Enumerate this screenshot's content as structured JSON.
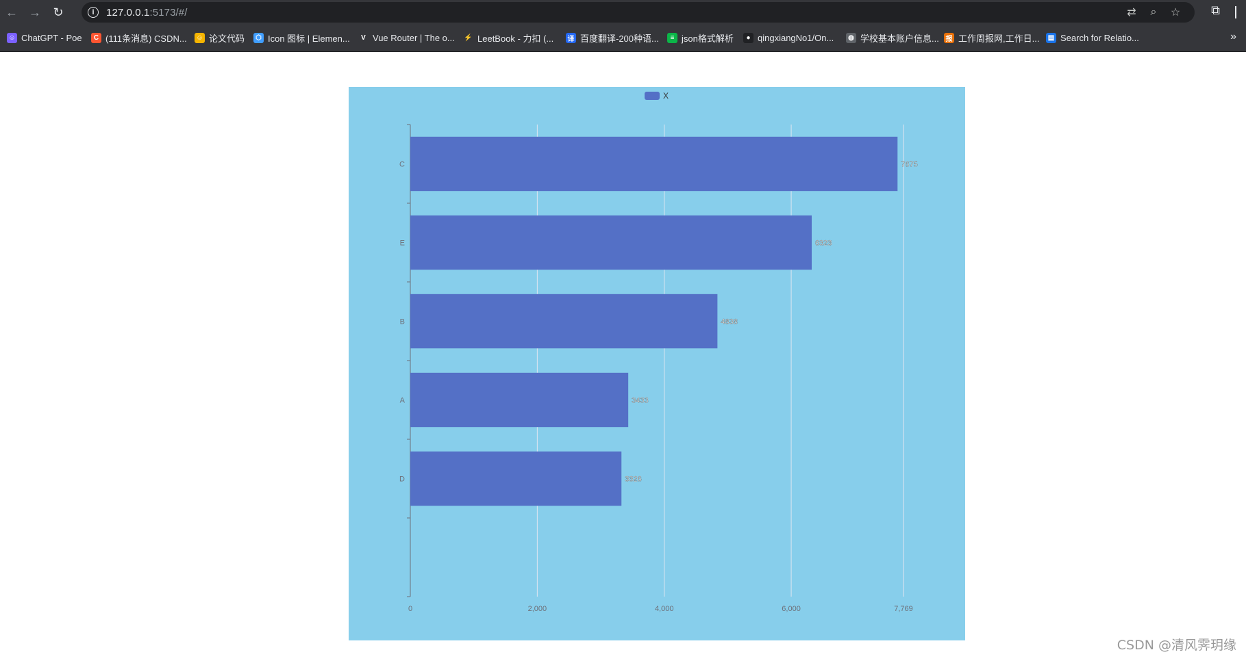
{
  "browser": {
    "url_host": "127.0.0.1",
    "url_rest": ":5173/#/",
    "site_info_glyph": "i",
    "bookmarks": [
      {
        "label": "ChatGPT - Poe",
        "icon": "poe-icon",
        "color": "#7b61ff",
        "glyph": "☺"
      },
      {
        "label": "(111条消息) CSDN...",
        "icon": "csdn-icon",
        "color": "#fc5531",
        "glyph": "C"
      },
      {
        "label": "论文代码",
        "icon": "smiley-icon",
        "color": "#f5b400",
        "glyph": "☺"
      },
      {
        "label": "Icon 图标 | Elemen...",
        "icon": "element-icon",
        "color": "#409eff",
        "glyph": "⬡"
      },
      {
        "label": "Vue Router | The o...",
        "icon": "vue-icon",
        "color": "#35363a",
        "glyph": "V"
      },
      {
        "label": "LeetBook - 力扣 (...",
        "icon": "leetcode-icon",
        "color": "#35363a",
        "glyph": "⚡"
      },
      {
        "label": "百度翻译-200种语...",
        "icon": "baidu-translate-icon",
        "color": "#2468f2",
        "glyph": "译"
      },
      {
        "label": "json格式解析",
        "icon": "json-icon",
        "color": "#0bb548",
        "glyph": "≡"
      },
      {
        "label": "qingxiangNo1/On...",
        "icon": "github-icon",
        "color": "#202124",
        "glyph": "●"
      },
      {
        "label": "学校基本账户信息...",
        "icon": "globe-icon",
        "color": "#5f6368",
        "glyph": "◍"
      },
      {
        "label": "工作周报网,工作日...",
        "icon": "report-icon",
        "color": "#e8710a",
        "glyph": "报"
      },
      {
        "label": "Search for Relatio...",
        "icon": "search-page-icon",
        "color": "#1a73e8",
        "glyph": "▤"
      }
    ]
  },
  "watermark": "CSDN @清风霁玥缘",
  "chart_data": {
    "type": "bar",
    "orientation": "horizontal",
    "categories": [
      "C",
      "E",
      "B",
      "A",
      "D"
    ],
    "series": [
      {
        "name": "X",
        "values": [
          7675,
          6323,
          4838,
          3433,
          3326
        ],
        "color": "#5470c6"
      }
    ],
    "data_labels": [
      "7675",
      "6323",
      "4838",
      "3433",
      "3326"
    ],
    "x_ticks": [
      0,
      2000,
      4000,
      6000,
      7769
    ],
    "x_tick_labels": [
      "0",
      "2,000",
      "4,000",
      "6,000",
      "7,769"
    ],
    "xlim": [
      0,
      7769
    ],
    "background": "#87ceeb",
    "grid": true,
    "legend_position": "top-center"
  }
}
